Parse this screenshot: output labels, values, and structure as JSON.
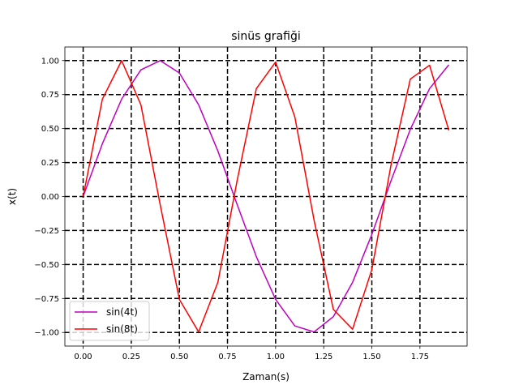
{
  "chart_data": {
    "type": "line",
    "title": "sinüs grafiği",
    "xlabel": "Zaman(s)",
    "ylabel": "x(t)",
    "xlim": [
      -0.095,
      1.995
    ],
    "ylim": [
      -1.1,
      1.1
    ],
    "xticks": [
      0.0,
      0.25,
      0.5,
      0.75,
      1.0,
      1.25,
      1.5,
      1.75
    ],
    "xtick_labels": [
      "0.00",
      "0.25",
      "0.50",
      "0.75",
      "1.00",
      "1.25",
      "1.50",
      "1.75"
    ],
    "yticks": [
      -1.0,
      -0.75,
      -0.5,
      -0.25,
      0.0,
      0.25,
      0.5,
      0.75,
      1.0
    ],
    "ytick_labels": [
      "−1.00",
      "−0.75",
      "−0.50",
      "−0.25",
      "0.00",
      "0.25",
      "0.50",
      "0.75",
      "1.00"
    ],
    "grid": true,
    "grid_style": "dashed",
    "grid_color": "#000000",
    "legend_position": "lower-left",
    "x": [
      0.0,
      0.1,
      0.2,
      0.3,
      0.4,
      0.5,
      0.6,
      0.7,
      0.8,
      0.9,
      1.0,
      1.1,
      1.2,
      1.3,
      1.4,
      1.5,
      1.6,
      1.7,
      1.8,
      1.9
    ],
    "series": [
      {
        "name": "sin(4t)",
        "color": "#bf00bf",
        "values": [
          0.0,
          0.389,
          0.717,
          0.932,
          1.0,
          0.909,
          0.675,
          0.335,
          -0.058,
          -0.443,
          -0.757,
          -0.952,
          -0.996,
          -0.884,
          -0.631,
          -0.279,
          0.117,
          0.494,
          0.794,
          0.969
        ]
      },
      {
        "name": "sin(8t)",
        "color": "#ff0000",
        "values": [
          0.0,
          0.717,
          1.0,
          0.675,
          -0.058,
          -0.757,
          -0.996,
          -0.631,
          0.117,
          0.794,
          0.989,
          0.585,
          -0.175,
          -0.83,
          -0.976,
          -0.537,
          0.233,
          0.864,
          0.966,
          0.487
        ]
      }
    ]
  }
}
